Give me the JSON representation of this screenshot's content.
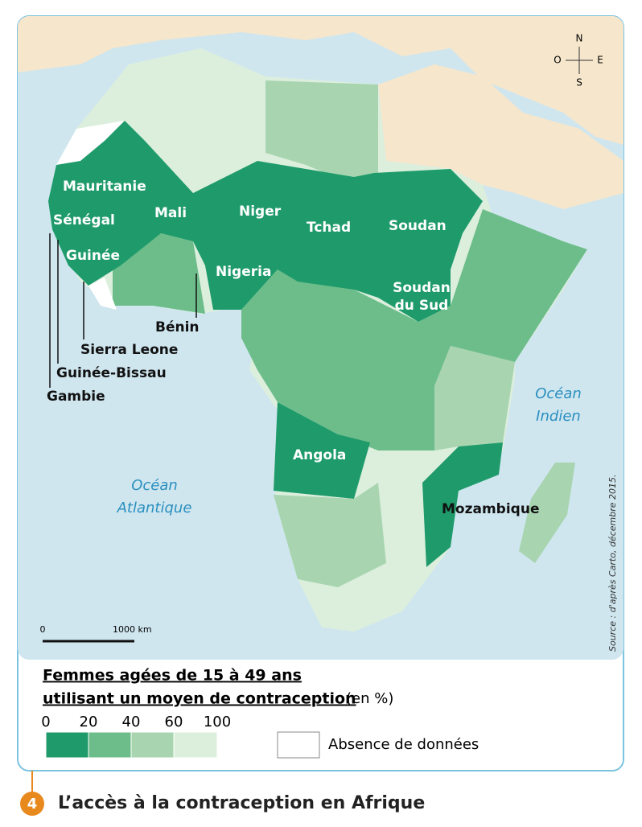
{
  "map": {
    "compass": {
      "n": "N",
      "o": "O",
      "e": "E",
      "s": "S"
    },
    "oceans": [
      [
        "Océan",
        "Atlantique"
      ],
      [
        "Océan",
        "Indien"
      ]
    ],
    "countries": [
      "Mauritanie",
      "Sénégal",
      "Mali",
      "Niger",
      "Tchad",
      "Soudan",
      "Guinée",
      "Nigeria",
      [
        "Soudan",
        "du Sud"
      ],
      "Bénin",
      "Sierra Leone",
      "Guinée-Bissau",
      "Gambie",
      "Angola",
      "Mozambique"
    ],
    "scale": [
      "0",
      "1000 km"
    ],
    "source": "Source : d'après Carto, décembre 2015."
  },
  "legend": {
    "title": [
      "Femmes agées de 15 à 49 ans",
      "utilisant un moyen de contraception"
    ],
    "unit": "(en %)",
    "breaks": [
      0,
      20,
      40,
      60,
      100
    ],
    "no_data": "Absence de données"
  },
  "caption": {
    "number": "4",
    "text": "L’accès à la contraception en Afrique"
  }
}
